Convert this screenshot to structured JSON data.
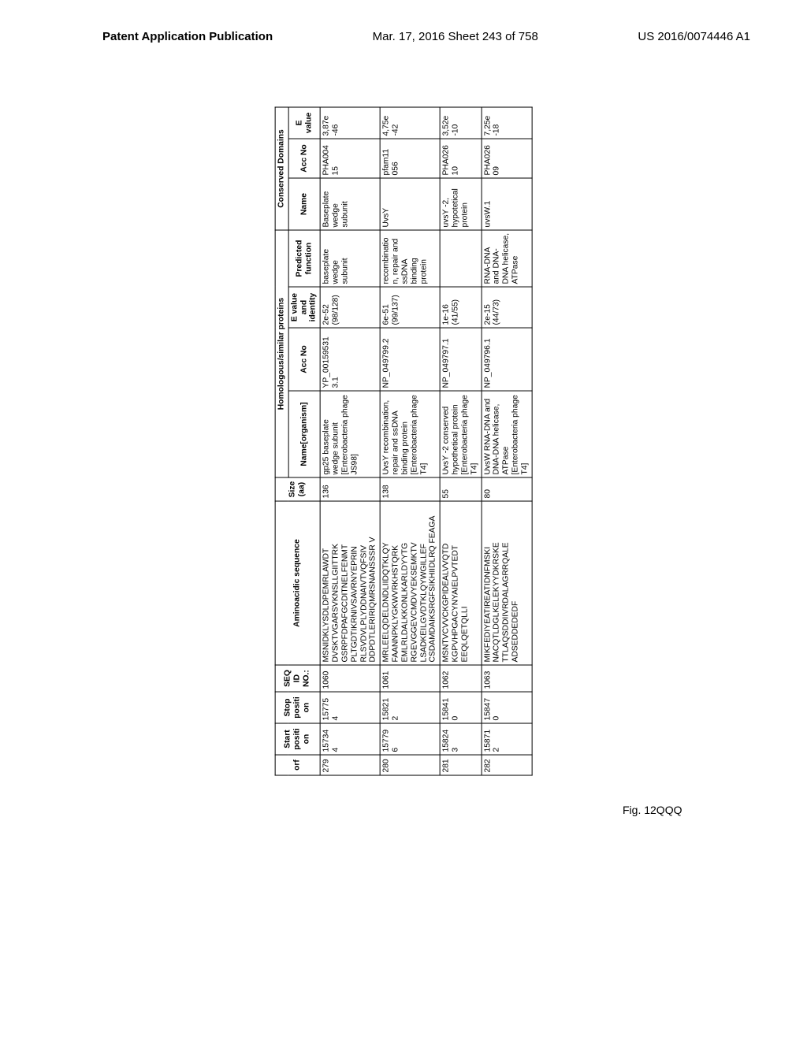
{
  "header": {
    "left": "Patent Application Publication",
    "center": "Mar. 17, 2016  Sheet 243 of 758",
    "right": "US 2016/0074446 A1"
  },
  "figure_label": "Fig. 12QQQ",
  "table": {
    "group_headers": {
      "homologous": "Homologous/similar proteins",
      "conserved": "Conserved Domains"
    },
    "columns": {
      "orf": "orf",
      "start": "Start positi on",
      "stop": "Stop positi on",
      "seq": "SEQ ID NO.:",
      "aa": "Aminoacidic sequence",
      "size": "Size (aa)",
      "name_org": "Name[organism]",
      "acc_no": "Acc No",
      "evalue": "E value and identity",
      "predicted": "Predicted function",
      "cname": "Name",
      "cacc": "Acc No",
      "cevalue": "E value"
    },
    "rows": [
      {
        "orf": "279",
        "start": "15734 4",
        "stop": "15775 4",
        "seq": "1060",
        "aa": "MSNIDKLYSDLDPEMRLAWDT DVSKTVGARSVKNSLLGIITTRK GSRPFDPAFGCDITNELFENMT PLTGDTIKRNIVSAVRNYEPRIN RLSVDVLPLYDDNAIVTVQFSIV DDPDTLERIRIQMRSNANSSSR V",
        "size": "136",
        "name_org": "gp25 baseplate wedge subunit [Enterobacteria phage JS98]",
        "acc_no": "YP_00159531 3.1",
        "evalue": "2e-52 (98/128)",
        "predicted": "baseplate wedge subunit",
        "cname": "Baseplate wedge subunit",
        "cacc": "PHA004 15",
        "cevalue": "3,87e -46"
      },
      {
        "orf": "280",
        "start": "15779 6",
        "stop": "15821 2",
        "seq": "1061",
        "aa": "MRLEELQDELDNDLIIDQTKLQY FAANNPKLYGKWVRKHSTQRK EMLRLDALKKONLKARLDYYTG RGEVGGEVCMDVYEKSEMKTV LSADKEILGVDTKLQYWGILLEF CSDAMDAIKSRGFSIKHIIDLRQ FEAGA",
        "size": "138",
        "name_org": "UvsY recombination, repair and ssDNA binding protein [Enterobacteria phage T4]",
        "acc_no": "NP_049799.2",
        "evalue": "6e-51 (99/137)",
        "predicted": "recombinatio n, repair and ssDNA binding protein",
        "cname": "UvsY",
        "cacc": "pfam11 056",
        "cevalue": "4,75e -42"
      },
      {
        "orf": "281",
        "start": "15824 3",
        "stop": "15841 0",
        "seq": "1062",
        "aa": "MSNTVCVVCKGPIDEALVVQTD KGPVHPGACYNYAIELPVTEDT EEQLQETQLLI",
        "size": "55",
        "name_org": "UvsY -2 conserved hypothetical protein [Enterobacteria phage T4]",
        "acc_no": "NP_049797.1",
        "evalue": "1e-16 (41/55)",
        "predicted": "",
        "cname": "uvsY -2, hypotetical protein",
        "cacc": "PHA026 10",
        "cevalue": "3,52e -10"
      },
      {
        "orf": "282",
        "start": "15871 2",
        "stop": "15847 0",
        "seq": "1063",
        "aa": "MIKFEDIYEATIREATIDNFMSKI NACQTLDGLKELEKYYDKRSKE TTLAQSDDIIVRDALAGRRQALE ADSEDDEDEDF",
        "size": "80",
        "name_org": "UvsW RNA-DNA and DNA-DNA helicase, ATPase [Enterobacteria phage T4]",
        "acc_no": "NP_049796.1",
        "evalue": "2e-15 (44/73)",
        "predicted": "RNA-DNA and DNA-DNA helicase, ATPase",
        "cname": "uvsW.1",
        "cacc": "PHA026 09",
        "cevalue": "7,25e -18"
      }
    ]
  }
}
